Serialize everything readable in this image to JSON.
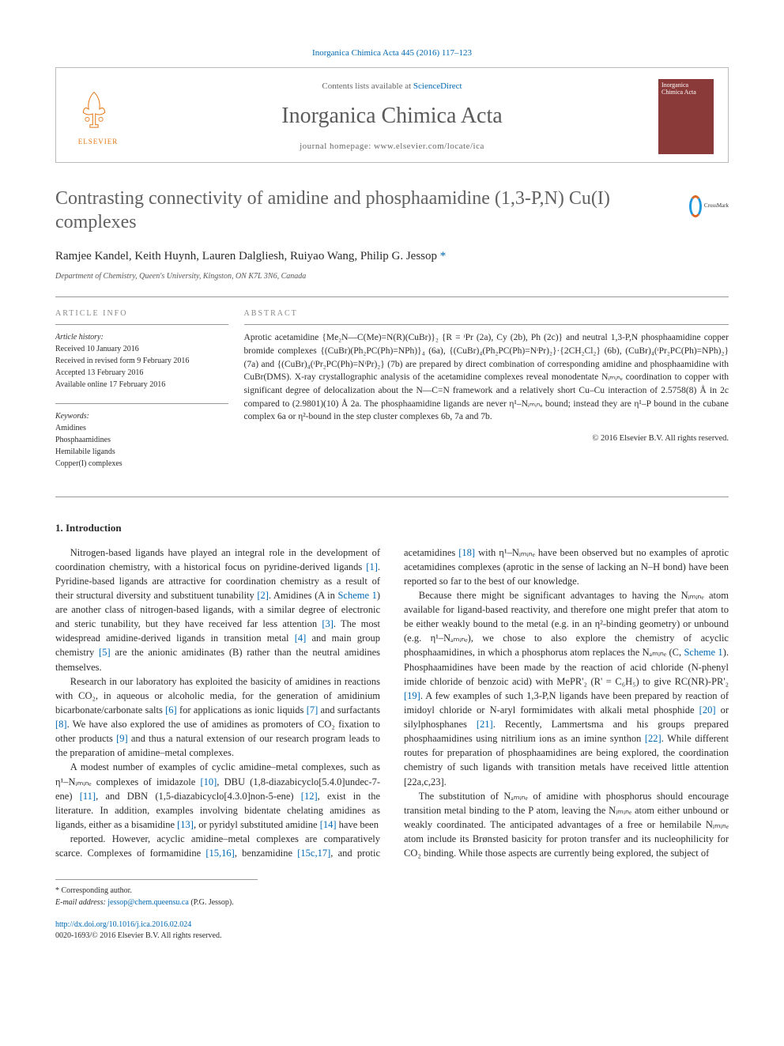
{
  "colors": {
    "link": "#0068b3",
    "text": "#2b2b2b",
    "muted": "#666666",
    "title_gray": "#616161",
    "rule": "#999999",
    "cover_bg": "#8b3a3a",
    "background": "#ffffff"
  },
  "typography": {
    "body_font": "Georgia, 'Times New Roman', serif",
    "journal_name_size_pt": 28,
    "article_title_size_pt": 24,
    "authors_size_pt": 15,
    "body_size_pt": 12.5,
    "abstract_size_pt": 11.5,
    "info_size_pt": 10,
    "footnote_size_pt": 10
  },
  "header": {
    "citation": "Inorganica Chimica Acta 445 (2016) 117–123",
    "contents_prefix": "Contents lists available at ",
    "contents_link": "ScienceDirect",
    "journal_name": "Inorganica Chimica Acta",
    "homepage": "journal homepage: www.elsevier.com/locate/ica",
    "publisher_logo_label": "ELSEVIER",
    "cover_label": "Inorganica Chimica Acta"
  },
  "article": {
    "title": "Contrasting connectivity of amidine and phosphaamidine (1,3-P,N) Cu(I) complexes",
    "crossmark": "CrossMark",
    "authors": "Ramjee Kandel, Keith Huynh, Lauren Dalgliesh, Ruiyao Wang, Philip G. Jessop",
    "corresp_marker": "*",
    "affiliation": "Department of Chemistry, Queen's University, Kingston, ON K7L 3N6, Canada"
  },
  "info": {
    "heading": "ARTICLE INFO",
    "history_label": "Article history:",
    "received": "Received 10 January 2016",
    "revised": "Received in revised form 9 February 2016",
    "accepted": "Accepted 13 February 2016",
    "online": "Available online 17 February 2016",
    "keywords_label": "Keywords:",
    "kw1": "Amidines",
    "kw2": "Phosphaamidines",
    "kw3": "Hemilabile ligands",
    "kw4": "Copper(I) complexes"
  },
  "abstract": {
    "heading": "ABSTRACT",
    "text": "Aprotic acetamidine {Me₂N—C(Me)=N(R)(CuBr)}₂ {R = ᶦPr (2a), Cy (2b), Ph (2c)} and neutral 1,3-P,N phosphaamidine copper bromide complexes {(CuBr)(Ph₂PC(Ph)=NPh)}₄ (6a), {(CuBr)₄(Ph₂PC(Ph)=NᶦPr)₂}·{2CH₂Cl₂} (6b), (CuBr)₄(ᶦPr₂PC(Ph)=NPh)₂} (7a) and {(CuBr)₄(ᶦPr₂PC(Ph)=NᶦPr)₂} (7b) are prepared by direct combination of corresponding amidine and phosphaamidine with CuBr(DMS). X-ray crystallographic analysis of the acetamidine complexes reveal monodentate Nᵢₘᵢₙₑ coordination to copper with significant degree of delocalization about the N—C=N framework and a relatively short Cu–Cu interaction of 2.5758(8) Å in 2c compared to (2.9801)(10) Å 2a. The phosphaamidine ligands are never η¹–Nᵢₘᵢₙₑ bound; instead they are η¹–P bound in the cubane complex 6a or η²-bound in the step cluster complexes 6b, 7a and 7b.",
    "copyright": "© 2016 Elsevier B.V. All rights reserved."
  },
  "introduction": {
    "heading": "1. Introduction",
    "p1": "Nitrogen-based ligands have played an integral role in the development of coordination chemistry, with a historical focus on pyridine-derived ligands [1]. Pyridine-based ligands are attractive for coordination chemistry as a result of their structural diversity and substituent tunability [2]. Amidines (A in Scheme 1) are another class of nitrogen-based ligands, with a similar degree of electronic and steric tunability, but they have received far less attention [3]. The most widespread amidine-derived ligands in transition metal [4] and main group chemistry [5] are the anionic amidinates (B) rather than the neutral amidines themselves.",
    "p2": "Research in our laboratory has exploited the basicity of amidines in reactions with CO₂, in aqueous or alcoholic media, for the generation of amidinium bicarbonate/carbonate salts [6] for applications as ionic liquids [7] and surfactants [8]. We have also explored the use of amidines as promoters of CO₂ fixation to other products [9] and thus a natural extension of our research program leads to the preparation of amidine–metal complexes.",
    "p3": "A modest number of examples of cyclic amidine–metal complexes, such as η¹–Nᵢₘᵢₙₑ complexes of imidazole [10], DBU (1,8-diazabicyclo[5.4.0]undec-7-ene) [11], and DBN (1,5-diazabicyclo[4.3.0]non-5-ene) [12], exist in the literature. In addition, examples involving bidentate chelating amidines as ligands, either as a bisamidine [13], or pyridyl substituted amidine [14] have been",
    "p4": "reported. However, acyclic amidine–metal complexes are comparatively scarce. Complexes of formamidine [15,16], benzamidine [15c,17], and protic acetamidines [18] with η¹–Nᵢₘᵢₙₑ have been observed but no examples of aprotic acetamidines complexes (aprotic in the sense of lacking an N–H bond) have been reported so far to the best of our knowledge.",
    "p5": "Because there might be significant advantages to having the Nᵢₘᵢₙₑ atom available for ligand-based reactivity, and therefore one might prefer that atom to be either weakly bound to the metal (e.g. in an η²-binding geometry) or unbound (e.g. η¹–Nₐₘᵢₙₑ), we chose to also explore the chemistry of acyclic phosphaamidines, in which a phosphorus atom replaces the Nₐₘᵢₙₑ (C, Scheme 1). Phosphaamidines have been made by the reaction of acid chloride (N-phenyl imide chloride of benzoic acid) with MePR'₂ (R' = C₆H₅) to give RC(NR)-PR'₂ [19]. A few examples of such 1,3-P,N ligands have been prepared by reaction of imidoyl chloride or N-aryl formimidates with alkali metal phosphide [20] or silylphosphanes [21]. Recently, Lammertsma and his groups prepared phosphaamidines using nitrilium ions as an imine synthon [22]. While different routes for preparation of phosphaamidines are being explored, the coordination chemistry of such ligands with transition metals have received little attention [22a,c,23].",
    "p6": "The substitution of Nₐₘᵢₙₑ of amidine with phosphorus should encourage transition metal binding to the P atom, leaving the Nᵢₘᵢₙₑ atom either unbound or weakly coordinated. The anticipated advantages of a free or hemilabile Nᵢₘᵢₙₑ atom include its Brønsted basicity for proton transfer and its nucleophilicity for CO₂ binding. While those aspects are currently being explored, the subject of"
  },
  "footnote": {
    "corresp": "* Corresponding author.",
    "email_label": "E-mail address: ",
    "email": "jessop@chem.queensu.ca",
    "email_suffix": " (P.G. Jessop)."
  },
  "doi": {
    "url": "http://dx.doi.org/10.1016/j.ica.2016.02.024",
    "issn_line": "0020-1693/© 2016 Elsevier B.V. All rights reserved."
  }
}
